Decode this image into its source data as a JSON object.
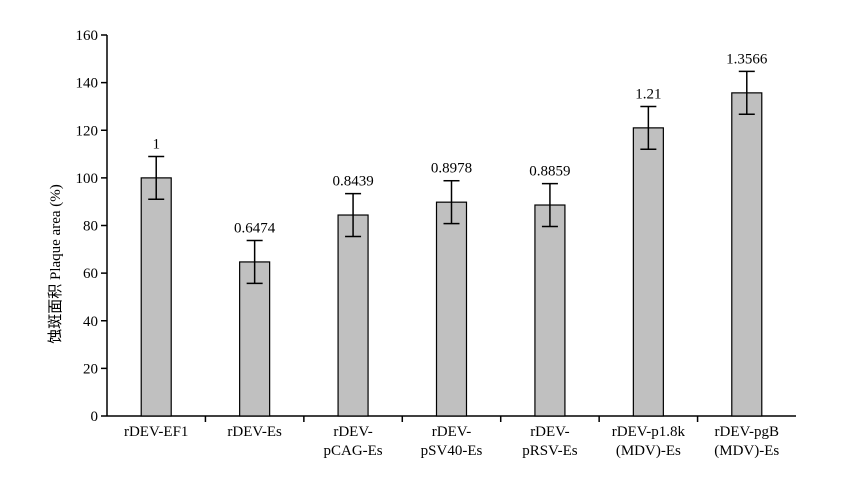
{
  "chart_data": {
    "type": "bar",
    "categories": [
      [
        "rDEV-EF1"
      ],
      [
        "rDEV-Es"
      ],
      [
        "rDEV-",
        "pCAG-Es"
      ],
      [
        "rDEV-",
        "pSV40-Es"
      ],
      [
        "rDEV-",
        "pRSV-Es"
      ],
      [
        "rDEV-p1.8k",
        "(MDV)-Es"
      ],
      [
        "rDEV-pgB",
        "(MDV)-Es"
      ]
    ],
    "values": [
      100,
      64.7,
      84.4,
      89.8,
      88.6,
      121,
      135.7
    ],
    "errors": [
      9,
      9,
      9,
      9,
      9,
      9,
      9
    ],
    "data_labels": [
      "1",
      "0.6474",
      "0.8439",
      "0.8978",
      "0.8859",
      "1.21",
      "1.3566"
    ],
    "ylabel": "蚀斑面积 Plaque area (%)",
    "xlabel": "",
    "title": "",
    "ylim": [
      0,
      160
    ],
    "yticks": [
      0,
      20,
      40,
      60,
      80,
      100,
      120,
      140,
      160
    ],
    "grid": false,
    "legend": "none",
    "bar_color": "#c0c0c0",
    "bar_edge_color": "#000000"
  }
}
